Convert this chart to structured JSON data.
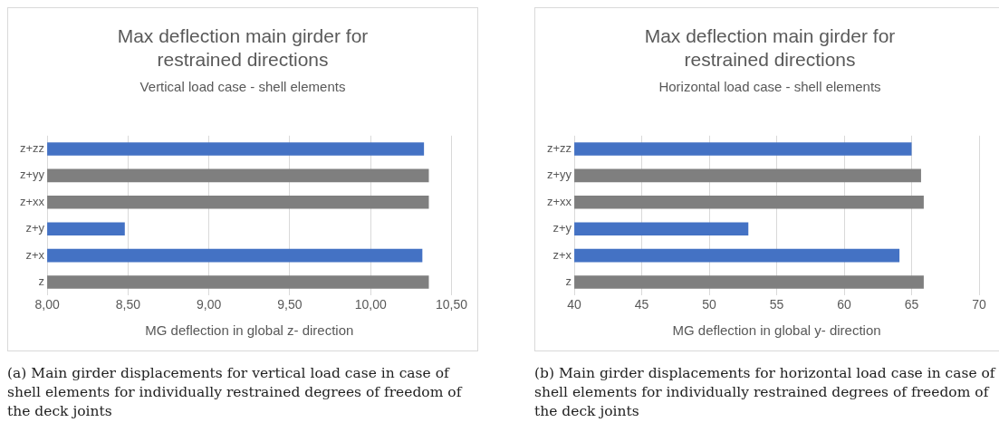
{
  "chart_data": [
    {
      "type": "bar",
      "orientation": "horizontal",
      "title": "Max deflection main girder for restrained directions",
      "subtitle": "Vertical load case - shell elements",
      "xlabel": "MG deflection in global z- direction",
      "categories": [
        "z+zz",
        "z+yy",
        "z+xx",
        "z+y",
        "z+x",
        "z"
      ],
      "values": [
        10.33,
        10.36,
        10.36,
        8.48,
        10.32,
        10.36
      ],
      "colors": [
        "#4472c4",
        "#7f7f7f",
        "#7f7f7f",
        "#4472c4",
        "#4472c4",
        "#7f7f7f"
      ],
      "xlim": [
        8,
        10.5
      ],
      "xticks": [
        {
          "value": 8,
          "label": "8,00"
        },
        {
          "value": 8.5,
          "label": "8,50"
        },
        {
          "value": 9,
          "label": "9,00"
        },
        {
          "value": 9.5,
          "label": "9,50"
        },
        {
          "value": 10,
          "label": "10,00"
        },
        {
          "value": 10.5,
          "label": "10,50"
        }
      ],
      "grid": "x",
      "legend": false,
      "annotations": [
        "(a) Main girder displacements for vertical load case in case of shell elements for individually restrained degrees of freedom of the deck joints"
      ]
    },
    {
      "type": "bar",
      "orientation": "horizontal",
      "title": "Max deflection main girder for restrained directions",
      "subtitle": "Horizontal load case - shell elements",
      "xlabel": "MG deflection in global y- direction",
      "categories": [
        "z+zz",
        "z+yy",
        "z+xx",
        "z+y",
        "z+x",
        "z"
      ],
      "values": [
        65.0,
        65.7,
        65.9,
        52.9,
        64.1,
        65.9
      ],
      "colors": [
        "#4472c4",
        "#7f7f7f",
        "#7f7f7f",
        "#4472c4",
        "#4472c4",
        "#7f7f7f"
      ],
      "xlim": [
        40,
        70
      ],
      "xticks": [
        40,
        45,
        50,
        55,
        60,
        65,
        70
      ],
      "grid": "x",
      "legend": false,
      "annotations": [
        "(b) Main girder displacements for horizontal load case in case of shell elements for individually restrained degrees of freedom of the deck joints"
      ]
    }
  ]
}
